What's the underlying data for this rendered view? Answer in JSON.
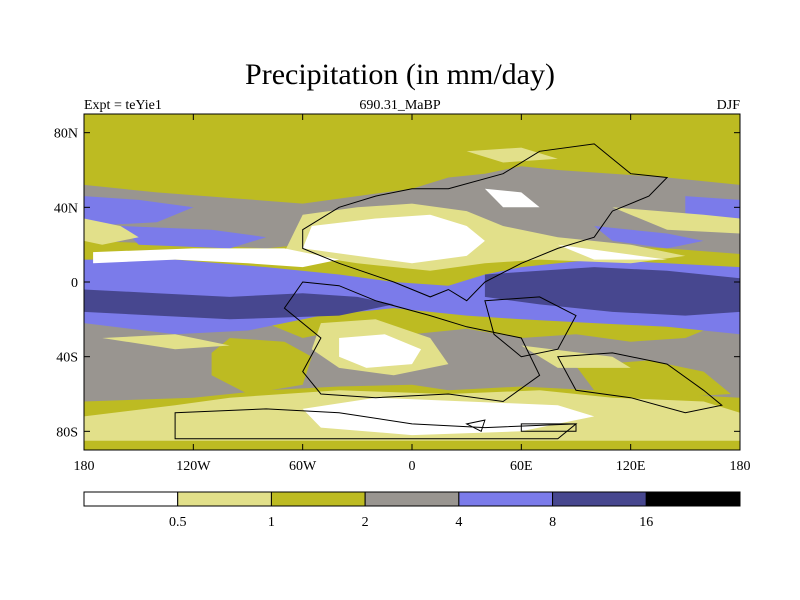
{
  "chart_data": {
    "type": "heatmap",
    "title": "Precipitation (in mm/day)",
    "subtitle_left": "Expt = teYie1",
    "subtitle_center": "690.31_MaBP",
    "subtitle_right": "DJF",
    "x_ticks": [
      "180",
      "120W",
      "60W",
      "0",
      "60E",
      "120E",
      "180"
    ],
    "x_values": [
      -180,
      -120,
      -60,
      0,
      60,
      120,
      180
    ],
    "y_ticks": [
      "80N",
      "40N",
      "0",
      "40S",
      "80S"
    ],
    "y_values": [
      80,
      40,
      0,
      -40,
      -80
    ],
    "xlim": [
      -180,
      180
    ],
    "ylim": [
      -90,
      90
    ],
    "colorbar": {
      "levels": [
        "0.5",
        "1",
        "2",
        "4",
        "8",
        "16"
      ],
      "colors": [
        "#ffffff",
        "#e2e08a",
        "#bdbb22",
        "#999590",
        "#7b7bea",
        "#47478f",
        "#000000"
      ]
    }
  }
}
